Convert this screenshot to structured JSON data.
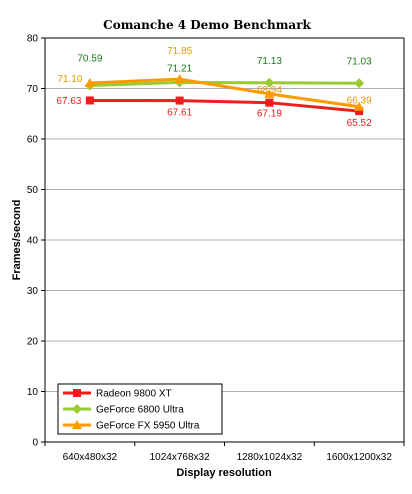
{
  "chart_data": {
    "type": "line",
    "title": "Comanche 4 Demo Benchmark",
    "xlabel": "Display resolution",
    "ylabel": "Frames/second",
    "ylim": [
      0,
      80
    ],
    "yticks": [
      0,
      10,
      20,
      30,
      40,
      50,
      60,
      70,
      80
    ],
    "categories": [
      "640x480x32",
      "1024x768x32",
      "1280x1024x32",
      "1600x1200x32"
    ],
    "grid": "horizontal",
    "legend_position": "bottom-left",
    "series": [
      {
        "name": "Radeon 9800 XT",
        "color": "#ee1c1c",
        "marker": "square",
        "values": [
          67.63,
          67.61,
          67.19,
          65.52
        ],
        "labels": [
          "67.63",
          "67.61",
          "67.19",
          "65.52"
        ]
      },
      {
        "name": "GeForce 6800 Ultra",
        "color": "#99cc33",
        "label_color": "#1a7a1a",
        "marker": "diamond",
        "values": [
          70.59,
          71.21,
          71.13,
          71.03
        ],
        "labels": [
          "70.59",
          "71.21",
          "71.13",
          "71.03"
        ]
      },
      {
        "name": "GeForce FX 5950 Ultra",
        "color": "#ff9900",
        "label_color": "#e09a00",
        "marker": "triangle",
        "values": [
          71.1,
          71.85,
          68.94,
          66.39
        ],
        "labels": [
          "71.10",
          "71.85",
          "68.94",
          "66.39"
        ]
      }
    ]
  }
}
